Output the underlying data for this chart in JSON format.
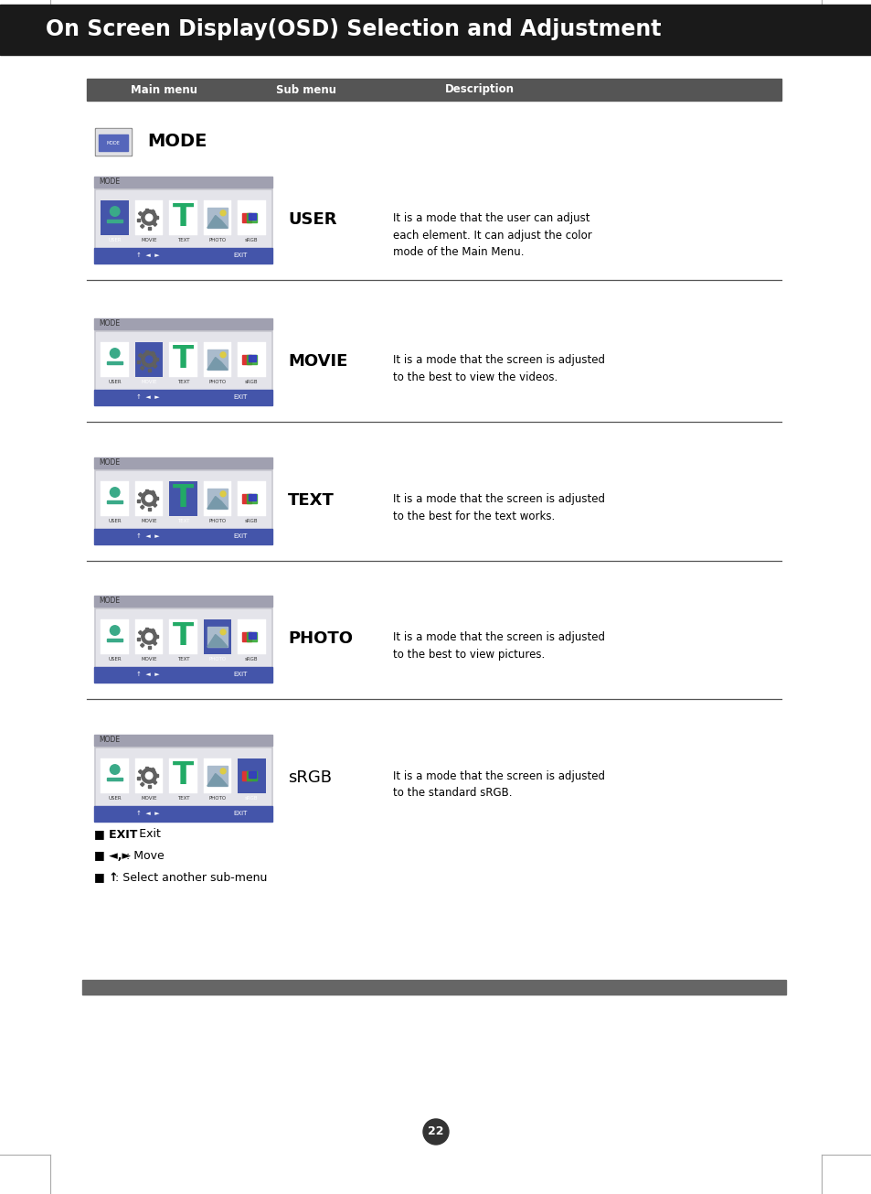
{
  "title": "On Screen Display(OSD) Selection and Adjustment",
  "title_bg": "#1a1a1a",
  "title_color": "#ffffff",
  "title_fontsize": 17,
  "header_bg": "#555555",
  "header_color": "#ffffff",
  "header_labels": [
    "Main menu",
    "Sub menu",
    "Description"
  ],
  "page_bg": "#ffffff",
  "page_number": "22",
  "rows": [
    {
      "submenu": "USER",
      "description": "It is a mode that the user can adjust\neach element. It can adjust the color\nmode of the Main Menu.",
      "active_idx": 0
    },
    {
      "submenu": "MOVIE",
      "description": "It is a mode that the screen is adjusted\nto the best to view the videos.",
      "active_idx": 1
    },
    {
      "submenu": "TEXT",
      "description": "It is a mode that the screen is adjusted\nto the best for the text works.",
      "active_idx": 2
    },
    {
      "submenu": "PHOTO",
      "description": "It is a mode that the screen is adjusted\nto the best to view pictures.",
      "active_idx": 3
    },
    {
      "submenu": "sRGB",
      "description": "It is a mode that the screen is adjusted\nto the standard sRGB.",
      "active_idx": 4
    }
  ],
  "icon_labels": [
    "USER",
    "MOVIE",
    "TEXT",
    "PHOTO",
    "sRGB"
  ],
  "footer_notes": [
    {
      "bold": "EXIT",
      "normal": " : Exit"
    },
    {
      "bold": "◄,►",
      "normal": " : Move"
    },
    {
      "bold": "↑",
      "normal": " : Select another sub-menu"
    }
  ],
  "osd_frame_bg": "#c8c8d0",
  "osd_title_bg": "#a0a0b0",
  "osd_content_bg": "#e4e4ea",
  "osd_bar_bg": "#4455aa",
  "osd_active_bg": "#4455aa",
  "separator_color": "#555555"
}
